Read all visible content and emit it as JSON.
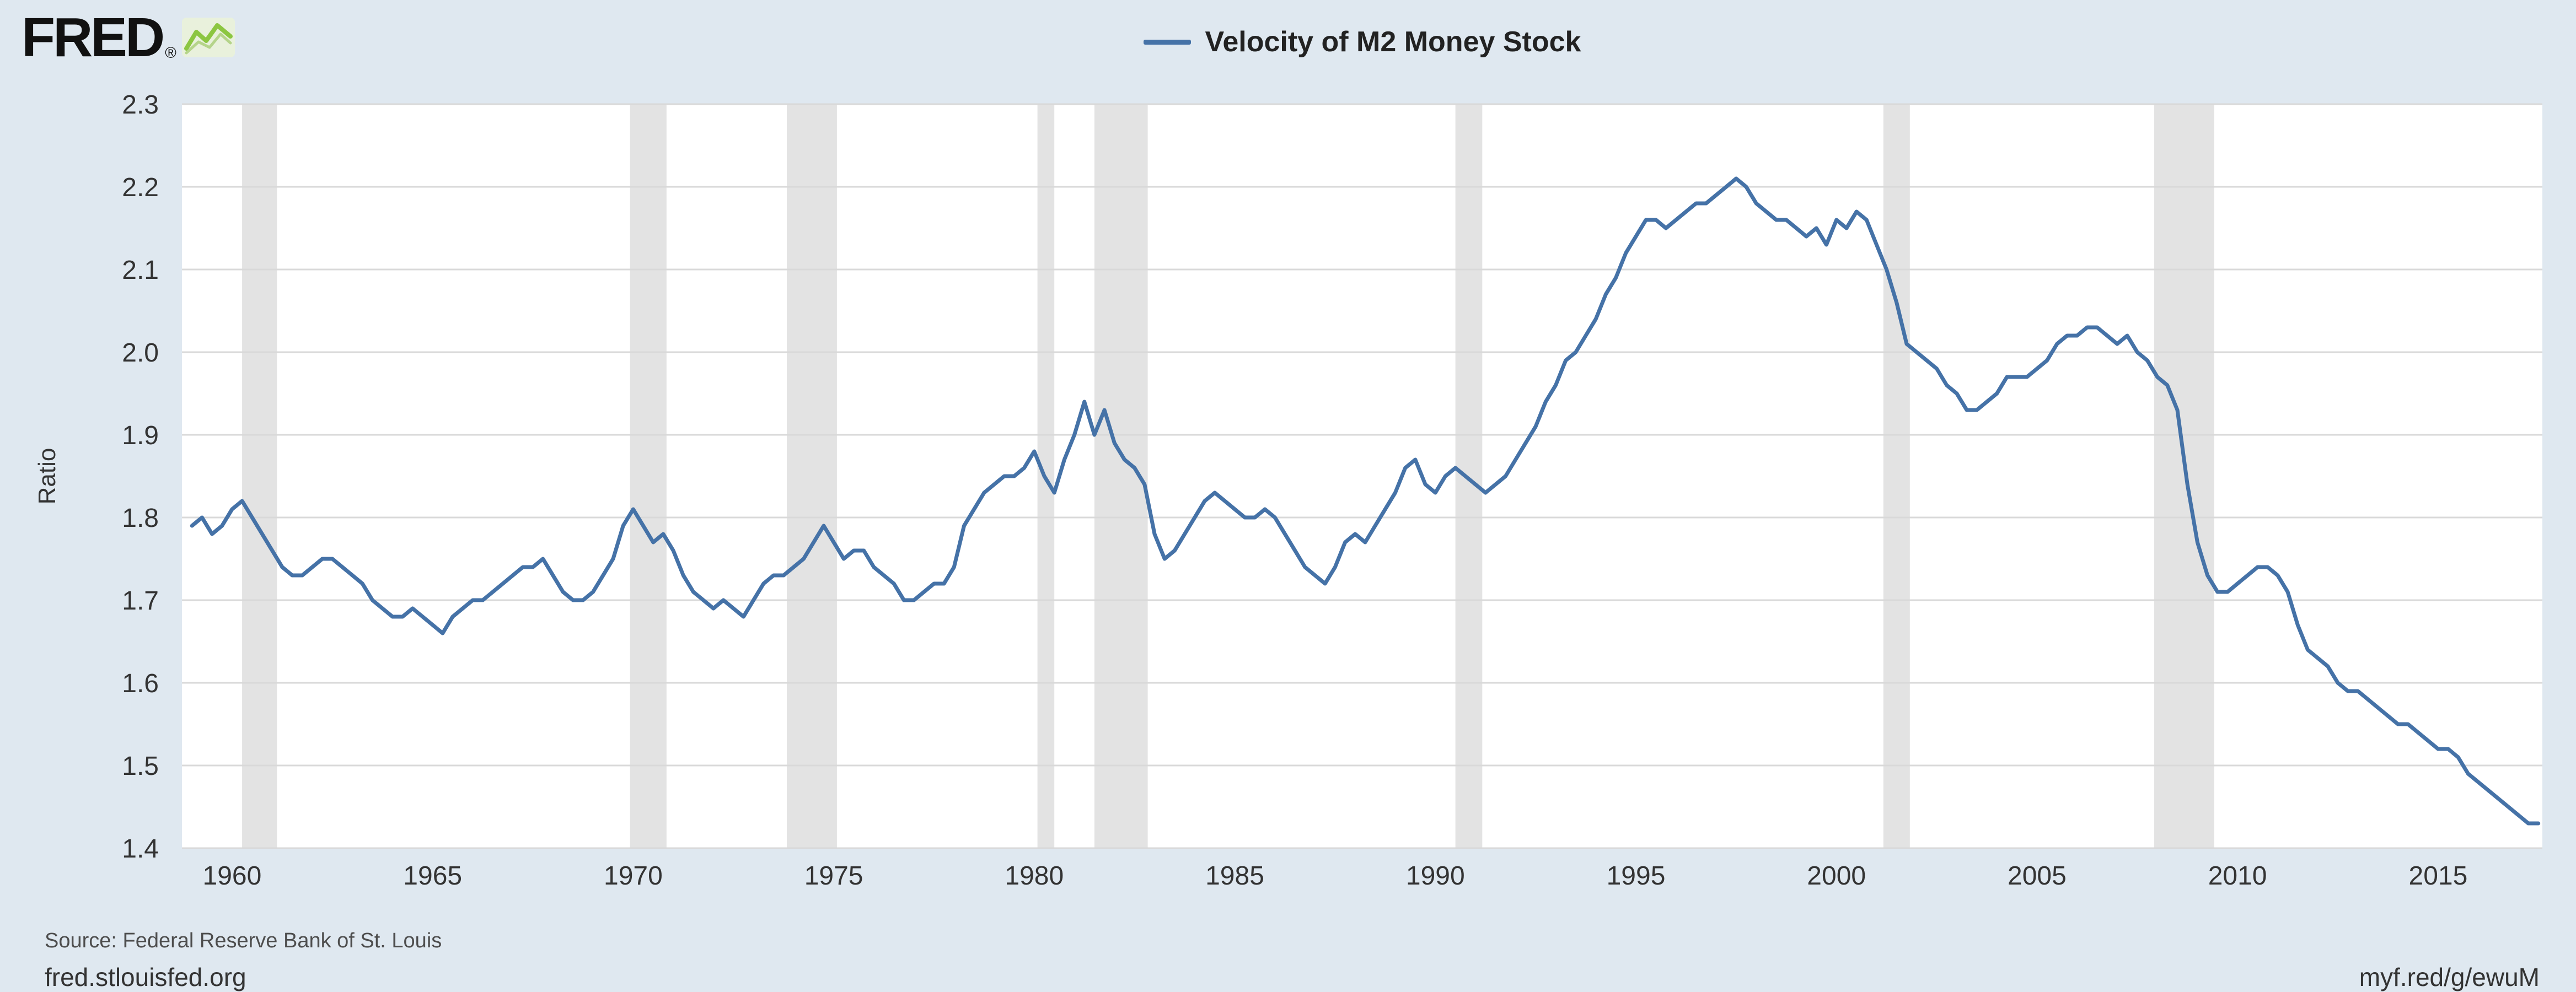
{
  "header": {
    "logo_text": "FRED",
    "logo_registered": "®",
    "legend": [
      {
        "label": "Velocity of M2 Money Stock",
        "color": "#4572a7"
      }
    ]
  },
  "icons": {
    "logo_chart": "green-line-chart-icon"
  },
  "footer": {
    "source": "Source: Federal Reserve Bank of St. Louis",
    "site": "fred.stlouisfed.org",
    "short_url": "myf.red/g/ewuM"
  },
  "colors": {
    "background": "#dfe8f0",
    "plot_bg": "#ffffff",
    "line": "#4572a7",
    "recession_band": "#e3e3e3",
    "grid": "#d9d9d9",
    "text": "#333333",
    "logo_green": "#8cc641"
  },
  "chart_data": {
    "type": "line",
    "title": "Velocity of M2 Money Stock",
    "xlabel": "",
    "ylabel": "Ratio",
    "xlim": [
      1958.75,
      2017.6
    ],
    "ylim": [
      1.4,
      2.3
    ],
    "y_ticks": [
      2.3,
      2.2,
      2.1,
      2.0,
      1.9,
      1.8,
      1.7,
      1.6,
      1.5,
      1.4
    ],
    "x_ticks": [
      1960,
      1965,
      1970,
      1975,
      1980,
      1985,
      1990,
      1995,
      2000,
      2005,
      2010,
      2015
    ],
    "grid": "horizontal",
    "legend_position": "top-center",
    "recession_bands": [
      [
        1960.25,
        1961.12
      ],
      [
        1969.92,
        1970.83
      ],
      [
        1973.83,
        1975.08
      ],
      [
        1980.08,
        1980.5
      ],
      [
        1981.5,
        1982.83
      ],
      [
        1990.5,
        1991.17
      ],
      [
        2001.17,
        2001.83
      ],
      [
        2007.92,
        2009.42
      ]
    ],
    "series": [
      {
        "name": "Velocity of M2 Money Stock",
        "start_year": 1959.0,
        "step_years": 0.25,
        "values": [
          1.79,
          1.8,
          1.78,
          1.79,
          1.81,
          1.82,
          1.8,
          1.78,
          1.76,
          1.74,
          1.73,
          1.73,
          1.74,
          1.75,
          1.75,
          1.74,
          1.73,
          1.72,
          1.7,
          1.69,
          1.68,
          1.68,
          1.69,
          1.68,
          1.67,
          1.66,
          1.68,
          1.69,
          1.7,
          1.7,
          1.71,
          1.72,
          1.73,
          1.74,
          1.74,
          1.75,
          1.73,
          1.71,
          1.7,
          1.7,
          1.71,
          1.73,
          1.75,
          1.79,
          1.81,
          1.79,
          1.77,
          1.78,
          1.76,
          1.73,
          1.71,
          1.7,
          1.69,
          1.7,
          1.69,
          1.68,
          1.7,
          1.72,
          1.73,
          1.73,
          1.74,
          1.75,
          1.77,
          1.79,
          1.77,
          1.75,
          1.76,
          1.76,
          1.74,
          1.73,
          1.72,
          1.7,
          1.7,
          1.71,
          1.72,
          1.72,
          1.74,
          1.79,
          1.81,
          1.83,
          1.84,
          1.85,
          1.85,
          1.86,
          1.88,
          1.85,
          1.83,
          1.87,
          1.9,
          1.94,
          1.9,
          1.93,
          1.89,
          1.87,
          1.86,
          1.84,
          1.78,
          1.75,
          1.76,
          1.78,
          1.8,
          1.82,
          1.83,
          1.82,
          1.81,
          1.8,
          1.8,
          1.81,
          1.8,
          1.78,
          1.76,
          1.74,
          1.73,
          1.72,
          1.74,
          1.77,
          1.78,
          1.77,
          1.79,
          1.81,
          1.83,
          1.86,
          1.87,
          1.84,
          1.83,
          1.85,
          1.86,
          1.85,
          1.84,
          1.83,
          1.84,
          1.85,
          1.87,
          1.89,
          1.91,
          1.94,
          1.96,
          1.99,
          2.0,
          2.02,
          2.04,
          2.07,
          2.09,
          2.12,
          2.14,
          2.16,
          2.16,
          2.15,
          2.16,
          2.17,
          2.18,
          2.18,
          2.19,
          2.2,
          2.21,
          2.2,
          2.18,
          2.17,
          2.16,
          2.16,
          2.15,
          2.14,
          2.15,
          2.13,
          2.16,
          2.15,
          2.17,
          2.16,
          2.13,
          2.1,
          2.06,
          2.01,
          2.0,
          1.99,
          1.98,
          1.96,
          1.95,
          1.93,
          1.93,
          1.94,
          1.95,
          1.97,
          1.97,
          1.97,
          1.98,
          1.99,
          2.01,
          2.02,
          2.02,
          2.03,
          2.03,
          2.02,
          2.01,
          2.02,
          2.0,
          1.99,
          1.97,
          1.96,
          1.93,
          1.84,
          1.77,
          1.73,
          1.71,
          1.71,
          1.72,
          1.73,
          1.74,
          1.74,
          1.73,
          1.71,
          1.67,
          1.64,
          1.63,
          1.62,
          1.6,
          1.59,
          1.59,
          1.58,
          1.57,
          1.56,
          1.55,
          1.55,
          1.54,
          1.53,
          1.52,
          1.52,
          1.51,
          1.49,
          1.48,
          1.47,
          1.46,
          1.45,
          1.44,
          1.43,
          1.43
        ]
      }
    ]
  }
}
